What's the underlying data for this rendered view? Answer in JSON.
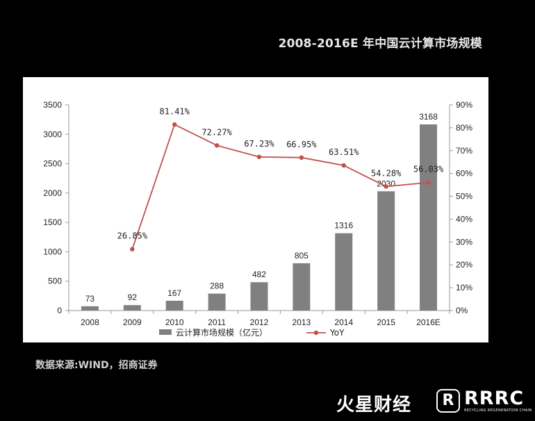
{
  "page": {
    "title": "2008-2016E 年中国云计算市场规模",
    "source": "数据来源:WIND，招商证券",
    "logo_left": "火星财经",
    "logo_mark": "R",
    "logo_right": "RRRC",
    "logo_right_sub": "RECYCLING REGENERATION CHAIN"
  },
  "chart_data": {
    "type": "bar",
    "title": "2008-2016E 年中国云计算市场规模",
    "categories": [
      "2008",
      "2009",
      "2010",
      "2011",
      "2012",
      "2013",
      "2014",
      "2015",
      "2016E"
    ],
    "series": [
      {
        "name": "云计算市场规模（亿元）",
        "type": "bar",
        "axis": "left",
        "color": "#808080",
        "values": [
          73,
          92,
          167,
          288,
          482,
          805,
          1316,
          2030,
          3168
        ],
        "labels": [
          "73",
          "92",
          "167",
          "288",
          "482",
          "805",
          "1316",
          "2030",
          "3168"
        ]
      },
      {
        "name": "YoY",
        "type": "line",
        "axis": "right",
        "color": "#c0504d",
        "values": [
          null,
          26.85,
          81.41,
          72.27,
          67.23,
          66.95,
          63.51,
          54.28,
          56.03
        ],
        "labels": [
          "",
          "26.85%",
          "81.41%",
          "72.27%",
          "67.23%",
          "66.95%",
          "63.51%",
          "54.28%",
          "56.03%"
        ]
      }
    ],
    "ylim": [
      0,
      3500
    ],
    "yticks": [
      "0",
      "500",
      "1000",
      "1500",
      "2000",
      "2500",
      "3000",
      "3500"
    ],
    "y2lim": [
      0,
      90
    ],
    "y2ticks": [
      "0%",
      "10%",
      "20%",
      "30%",
      "40%",
      "50%",
      "60%",
      "70%",
      "80%",
      "90%"
    ],
    "grid": false,
    "legend": "bottom"
  }
}
